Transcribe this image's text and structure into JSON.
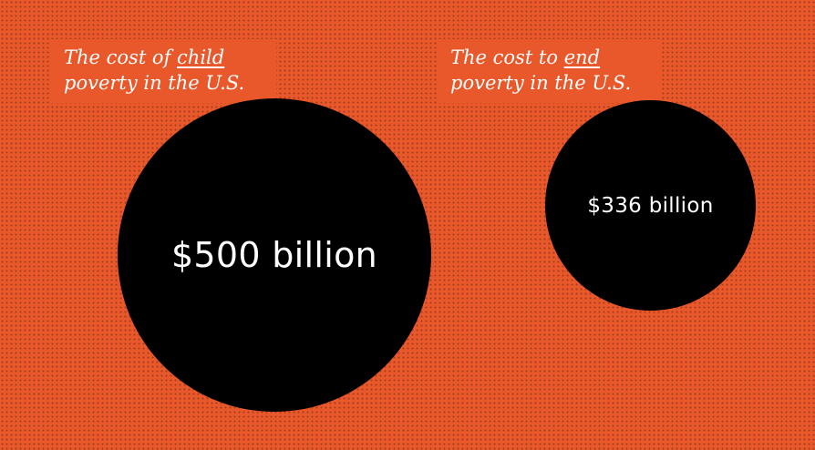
{
  "chart_data": {
    "type": "bubble",
    "series": [
      {
        "caption": {
          "before": "The cost of ",
          "highlight": "child",
          "after": " poverty in the U.S."
        },
        "value": 500,
        "label": "$500 billion"
      },
      {
        "caption": {
          "before": "The cost to ",
          "highlight": "end",
          "after": " poverty in the U.S."
        },
        "value": 336,
        "label": "$336 billion"
      }
    ],
    "unit": "billion USD"
  },
  "colors": {
    "background": "#e9582a",
    "bubble": "#000000",
    "text": "#ffffff"
  }
}
